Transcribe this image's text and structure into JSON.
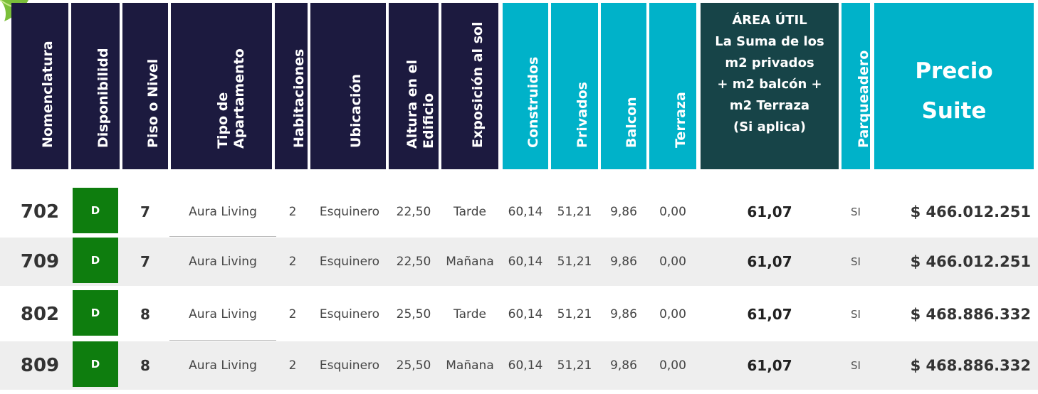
{
  "headers": {
    "nomenclatura": "Nomenclatura",
    "disponibilidad": "Disponibilidd",
    "piso": "Piso o Nivel",
    "tipo_line1": "Tipo de",
    "tipo_line2": "Apartamento",
    "habitaciones": "Habitaciones",
    "ubicacion": "Ubicación",
    "altura_line1": "Altura en el",
    "altura_line2": "Edificio",
    "exposicion": "Exposición al sol",
    "construidos": "Construidos",
    "privados": "Privados",
    "balcon": "Balcon",
    "terraza": "Terraza",
    "area_lines": [
      "ÁREA ÚTIL",
      "La Suma de los",
      "m2 privados",
      "+ m2 balcón +",
      "m2 Terraza",
      "(Si aplica)"
    ],
    "parqueadero": "Parqueadero",
    "precio_lines": [
      "Precio",
      "Suite"
    ]
  },
  "colors": {
    "navy_header": "#1c1a3f",
    "teal_header": "#00b2c9",
    "dark_teal_header": "#174448",
    "available_badge": "#0e7d0e",
    "row_shade": "#eeeeee"
  },
  "rows": [
    {
      "nomenclatura": "702",
      "disponibilidad": "D",
      "piso": "7",
      "tipo": "Aura Living",
      "habitaciones": "2",
      "ubicacion": "Esquinero",
      "altura": "22,50",
      "exposicion": "Tarde",
      "construidos": "60,14",
      "privados": "51,21",
      "balcon": "9,86",
      "terraza": "0,00",
      "area_util": "61,07",
      "parqueadero": "SI",
      "precio": "$ 466.012.251"
    },
    {
      "nomenclatura": "709",
      "disponibilidad": "D",
      "piso": "7",
      "tipo": "Aura Living",
      "habitaciones": "2",
      "ubicacion": "Esquinero",
      "altura": "22,50",
      "exposicion": "Mañana",
      "construidos": "60,14",
      "privados": "51,21",
      "balcon": "9,86",
      "terraza": "0,00",
      "area_util": "61,07",
      "parqueadero": "SI",
      "precio": "$ 466.012.251"
    },
    {
      "nomenclatura": "802",
      "disponibilidad": "D",
      "piso": "8",
      "tipo": "Aura Living",
      "habitaciones": "2",
      "ubicacion": "Esquinero",
      "altura": "25,50",
      "exposicion": "Tarde",
      "construidos": "60,14",
      "privados": "51,21",
      "balcon": "9,86",
      "terraza": "0,00",
      "area_util": "61,07",
      "parqueadero": "SI",
      "precio": "$ 468.886.332"
    },
    {
      "nomenclatura": "809",
      "disponibilidad": "D",
      "piso": "8",
      "tipo": "Aura Living",
      "habitaciones": "2",
      "ubicacion": "Esquinero",
      "altura": "25,50",
      "exposicion": "Mañana",
      "construidos": "60,14",
      "privados": "51,21",
      "balcon": "9,86",
      "terraza": "0,00",
      "area_util": "61,07",
      "parqueadero": "SI",
      "precio": "$ 468.886.332"
    }
  ]
}
